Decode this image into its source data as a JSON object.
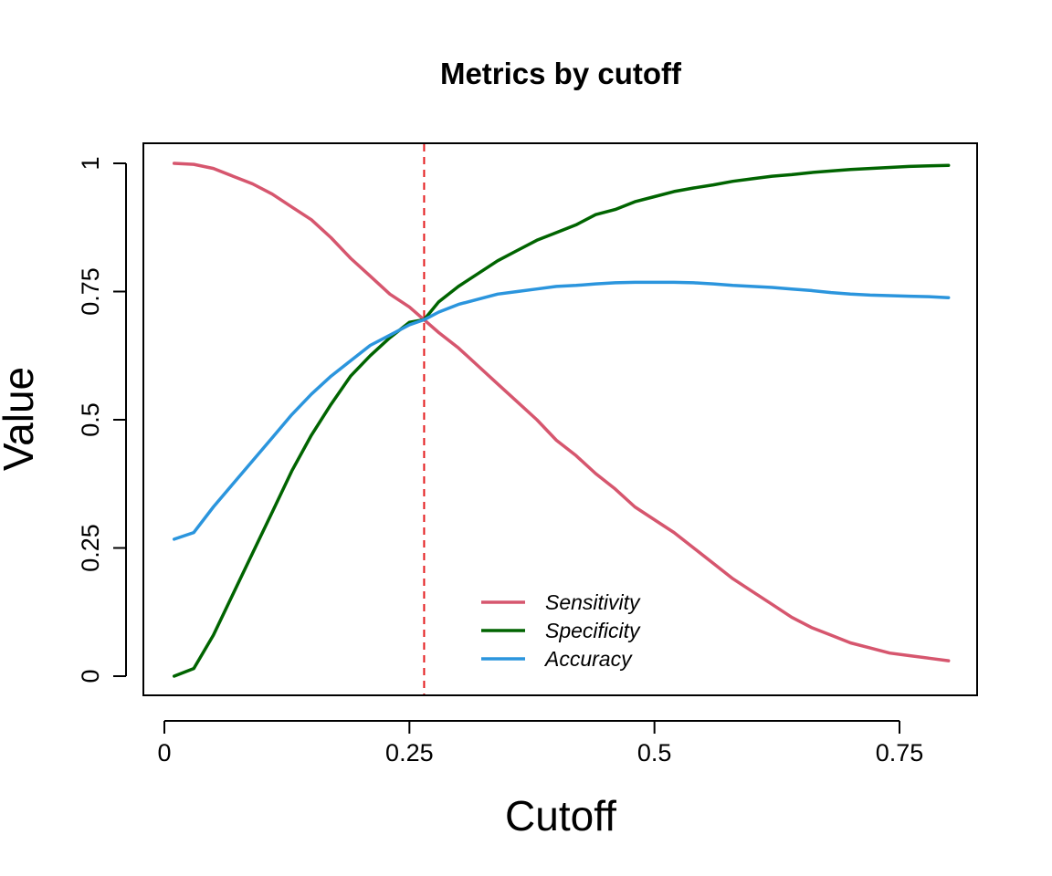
{
  "chart_data": {
    "type": "line",
    "title": "Metrics by cutoff",
    "xlabel": "Cutoff",
    "ylabel": "Value",
    "xlim": [
      0,
      0.85
    ],
    "ylim": [
      0,
      1
    ],
    "x_ticks": [
      0,
      0.25,
      0.5,
      0.75
    ],
    "x_tick_labels": [
      "0",
      "0.25",
      "0.5",
      "0.75"
    ],
    "y_ticks": [
      0,
      0.25,
      0.5,
      0.75,
      1
    ],
    "y_tick_labels": [
      "0",
      "0.25",
      "0.5",
      "0.75",
      "1"
    ],
    "grid": false,
    "legend_position": "bottom-center",
    "cutoff_line": {
      "x": 0.265,
      "color": "#e41a1c",
      "style": "dashed"
    },
    "series": [
      {
        "name": "Sensitivity",
        "color": "#d6566e",
        "x": [
          0.01,
          0.03,
          0.05,
          0.07,
          0.09,
          0.11,
          0.13,
          0.15,
          0.17,
          0.19,
          0.21,
          0.23,
          0.25,
          0.265,
          0.28,
          0.3,
          0.32,
          0.34,
          0.36,
          0.38,
          0.4,
          0.42,
          0.44,
          0.46,
          0.48,
          0.5,
          0.52,
          0.54,
          0.56,
          0.58,
          0.6,
          0.62,
          0.64,
          0.66,
          0.68,
          0.7,
          0.72,
          0.74,
          0.76,
          0.78,
          0.8
        ],
        "values": [
          1.0,
          0.998,
          0.99,
          0.975,
          0.96,
          0.94,
          0.915,
          0.89,
          0.855,
          0.815,
          0.78,
          0.745,
          0.72,
          0.695,
          0.67,
          0.64,
          0.605,
          0.57,
          0.535,
          0.5,
          0.46,
          0.43,
          0.395,
          0.365,
          0.33,
          0.305,
          0.28,
          0.25,
          0.22,
          0.19,
          0.165,
          0.14,
          0.115,
          0.095,
          0.08,
          0.065,
          0.055,
          0.045,
          0.04,
          0.035,
          0.03
        ]
      },
      {
        "name": "Specificity",
        "color": "#006400",
        "x": [
          0.01,
          0.03,
          0.05,
          0.07,
          0.09,
          0.11,
          0.13,
          0.15,
          0.17,
          0.19,
          0.21,
          0.23,
          0.25,
          0.265,
          0.28,
          0.3,
          0.32,
          0.34,
          0.36,
          0.38,
          0.4,
          0.42,
          0.44,
          0.46,
          0.48,
          0.5,
          0.52,
          0.54,
          0.56,
          0.58,
          0.6,
          0.62,
          0.64,
          0.66,
          0.68,
          0.7,
          0.72,
          0.74,
          0.76,
          0.78,
          0.8
        ],
        "values": [
          0.0,
          0.015,
          0.08,
          0.16,
          0.24,
          0.32,
          0.4,
          0.47,
          0.53,
          0.585,
          0.625,
          0.66,
          0.69,
          0.695,
          0.73,
          0.76,
          0.785,
          0.81,
          0.83,
          0.85,
          0.865,
          0.88,
          0.9,
          0.91,
          0.925,
          0.935,
          0.945,
          0.952,
          0.958,
          0.965,
          0.97,
          0.975,
          0.978,
          0.982,
          0.985,
          0.988,
          0.99,
          0.992,
          0.994,
          0.995,
          0.996
        ]
      },
      {
        "name": "Accuracy",
        "color": "#2b95dd",
        "x": [
          0.01,
          0.03,
          0.05,
          0.07,
          0.09,
          0.11,
          0.13,
          0.15,
          0.17,
          0.19,
          0.21,
          0.23,
          0.25,
          0.265,
          0.28,
          0.3,
          0.32,
          0.34,
          0.36,
          0.38,
          0.4,
          0.42,
          0.44,
          0.46,
          0.48,
          0.5,
          0.52,
          0.54,
          0.56,
          0.58,
          0.6,
          0.62,
          0.64,
          0.66,
          0.68,
          0.7,
          0.72,
          0.74,
          0.76,
          0.78,
          0.8
        ],
        "values": [
          0.267,
          0.28,
          0.33,
          0.375,
          0.42,
          0.465,
          0.51,
          0.55,
          0.585,
          0.615,
          0.645,
          0.665,
          0.685,
          0.695,
          0.71,
          0.725,
          0.735,
          0.745,
          0.75,
          0.755,
          0.76,
          0.762,
          0.765,
          0.767,
          0.768,
          0.768,
          0.768,
          0.767,
          0.765,
          0.762,
          0.76,
          0.758,
          0.755,
          0.752,
          0.748,
          0.745,
          0.743,
          0.742,
          0.741,
          0.74,
          0.738
        ]
      }
    ]
  }
}
